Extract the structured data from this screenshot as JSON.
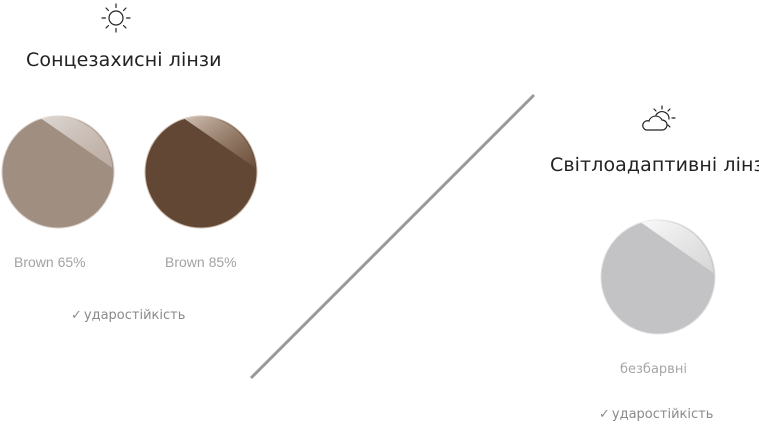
{
  "sunglasses": {
    "icon": "sun-icon",
    "title": "Сонцезахисні лінзи",
    "lenses": [
      {
        "label": "Brown 65%",
        "color": "#a08e81"
      },
      {
        "label": "Brown 85%",
        "color": "#614734"
      }
    ],
    "feature": "ударостійкість",
    "check_icon": "checkmark-icon"
  },
  "photochromic": {
    "icon": "sun-cloud-icon",
    "title": "Світлоадаптивні лінзи",
    "lens": {
      "label": "безбарвні",
      "color": "#c3c3c5"
    },
    "feature": "ударостійкість",
    "check_icon": "checkmark-icon"
  },
  "divider_color": "#9a9a9a"
}
